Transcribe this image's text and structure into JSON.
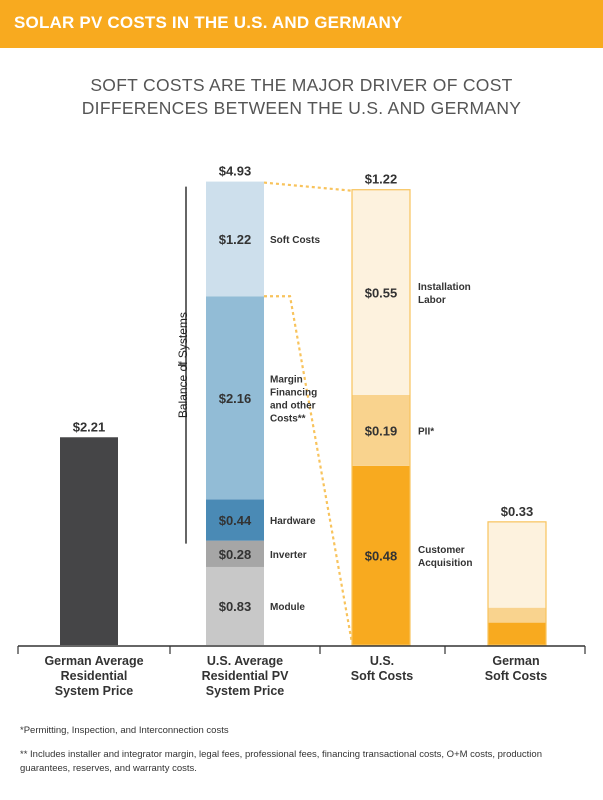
{
  "header": {
    "title": "SOLAR PV COSTS IN THE U.S. AND GERMANY"
  },
  "subtitle": {
    "line1": "SOFT COSTS ARE THE MAJOR DRIVER OF COST",
    "line2": "DIFFERENCES BETWEEN THE U.S. AND GERMANY"
  },
  "colors": {
    "header_bg": "#f8aa1f",
    "german_bar": "#454547",
    "us_soft": "#cddfec",
    "us_bos": "#92bcd6",
    "us_hardware": "#4a8ab5",
    "us_inverter": "#a6a6a6",
    "us_module": "#c8c8c8",
    "install_labor": "#fdf2de",
    "pii": "#f9d38e",
    "customer_acq": "#f8aa1f",
    "orange_outline": "#f8c35c",
    "axis": "#333333"
  },
  "chart_data": {
    "type": "bar",
    "title": "SOFT COSTS ARE THE MAJOR DRIVER OF COST DIFFERENCES BETWEEN THE U.S. AND GERMANY",
    "ylabel": "",
    "ylim": [
      0,
      5.2
    ],
    "categories": [
      [
        "German Average",
        "Residential",
        "System Price"
      ],
      [
        "U.S. Average",
        "Residential PV",
        "System Price"
      ],
      [
        "U.S.",
        "Soft Costs"
      ],
      [
        "German",
        "Soft Costs"
      ]
    ],
    "bars": [
      {
        "total_label": "$2.21",
        "segments": [
          {
            "name": "German Average Residential System Price",
            "value": 2.21,
            "label": "",
            "colorKey": "german_bar"
          }
        ]
      },
      {
        "total_label": "$4.93",
        "segments": [
          {
            "name": "Module",
            "value": 0.83,
            "label": "$0.83",
            "colorKey": "us_module"
          },
          {
            "name": "Inverter",
            "value": 0.28,
            "label": "$0.28",
            "colorKey": "us_inverter"
          },
          {
            "name": "Hardware",
            "value": 0.44,
            "label": "$0.44",
            "colorKey": "us_hardware"
          },
          {
            "name": "Margin Financing and other Costs**",
            "value": 2.16,
            "label": "$2.16",
            "colorKey": "us_bos"
          },
          {
            "name": "Soft Costs",
            "value": 1.22,
            "label": "$1.22",
            "colorKey": "us_soft"
          }
        ]
      },
      {
        "total_label": "$1.22",
        "scale": 3.97,
        "segments": [
          {
            "name": "Customer Acquisition",
            "value": 0.48,
            "label": "$0.48",
            "colorKey": "customer_acq"
          },
          {
            "name": "PII*",
            "value": 0.19,
            "label": "$0.19",
            "colorKey": "pii"
          },
          {
            "name": "Installation Labor",
            "value": 0.55,
            "label": "$0.55",
            "colorKey": "install_labor"
          }
        ]
      },
      {
        "total_label": "$0.33",
        "scale": 3.97,
        "segments": [
          {
            "name": "Customer Acquisition",
            "value": 0.06,
            "label": "",
            "colorKey": "customer_acq"
          },
          {
            "name": "PII*",
            "value": 0.04,
            "label": "",
            "colorKey": "pii"
          },
          {
            "name": "Installation Labor",
            "value": 0.23,
            "label": "",
            "colorKey": "install_labor"
          }
        ]
      }
    ],
    "annotations": {
      "us_avg": [
        {
          "segment": 4,
          "lines": [
            "Soft Costs"
          ]
        },
        {
          "segment": 3,
          "lines": [
            "Margin",
            "Financing",
            "and other",
            "Costs**"
          ]
        },
        {
          "segment": 2,
          "lines": [
            "Hardware"
          ]
        },
        {
          "segment": 1,
          "lines": [
            "Inverter"
          ]
        },
        {
          "segment": 0,
          "lines": [
            "Module"
          ]
        }
      ],
      "us_soft": [
        {
          "segment": 2,
          "lines": [
            "Installation",
            "Labor"
          ]
        },
        {
          "segment": 1,
          "lines": [
            "PII*"
          ]
        },
        {
          "segment": 0,
          "lines": [
            "Customer",
            "Acquisition"
          ]
        }
      ],
      "bracket_label": "Balance of Systems"
    }
  },
  "footnotes": {
    "note1": "*Permitting, Inspection, and Interconnection costs",
    "note2": "** Includes installer and integrator margin, legal fees, professional fees, financing transactional costs, O+M costs, production guarantees, reserves, and warranty costs."
  }
}
